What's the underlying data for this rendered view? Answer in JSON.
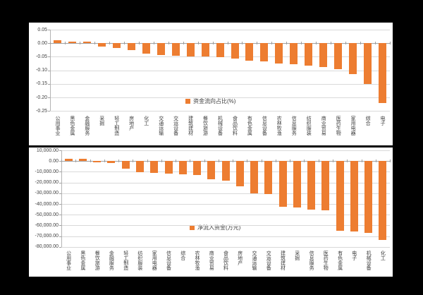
{
  "background_color": "#000000",
  "panel_color": "#FFFFFF",
  "bar_color": "#ED7D31",
  "gridline_color": "#D9D9D9",
  "text_color": "#3F3F3F",
  "chart_data": [
    {
      "type": "bar",
      "title": "",
      "legend": "资金流向占比(%)",
      "legend_position": "inside-bottom-center",
      "grid": true,
      "ylim": [
        -0.25,
        0.05
      ],
      "y_tick_labels": [
        "0.05",
        "0.00",
        "-0.05",
        "-0.10",
        "-0.15",
        "-0.20",
        "-0.25"
      ],
      "categories": [
        "公用事业",
        "黑色金属",
        "金融服务",
        "采掘",
        "轻工制造",
        "房地产",
        "化工",
        "交通运输",
        "交运设备",
        "建筑建材",
        "餐饮旅游",
        "机械设备",
        "食品饮料",
        "有色金属",
        "信息设备",
        "农林牧渔",
        "信息服务",
        "纺织服装",
        "商业贸易",
        "医药生物",
        "家用电器",
        "综合",
        "电子"
      ],
      "values": [
        0.011,
        0.007,
        0.005,
        -0.012,
        -0.019,
        -0.026,
        -0.038,
        -0.044,
        -0.046,
        -0.048,
        -0.05,
        -0.051,
        -0.056,
        -0.066,
        -0.067,
        -0.075,
        -0.077,
        -0.082,
        -0.089,
        -0.095,
        -0.115,
        -0.15,
        -0.222
      ]
    },
    {
      "type": "bar",
      "title": "",
      "legend": "净流入资金(万元)",
      "legend_position": "inside-bottom-center",
      "grid": true,
      "ylim": [
        -80000,
        10000
      ],
      "y_tick_labels": [
        "10,000.00",
        "0.00",
        "-10,000.00",
        "-20,000.00",
        "-30,000.00",
        "-40,000.00",
        "-50,000.00",
        "-60,000.00",
        "-70,000.00",
        "-80,000.00"
      ],
      "categories": [
        "公用事业",
        "黑色金属",
        "餐饮旅游",
        "金融服务",
        "轻工制造",
        "纺织服装",
        "家用电器",
        "信息设备",
        "综合",
        "农林牧渔",
        "商业贸易",
        "食品饮料",
        "房地产",
        "交通运输",
        "交运设备",
        "建筑建材",
        "采掘",
        "信息服务",
        "医药生物",
        "有色金属",
        "电子",
        "机械设备",
        "化工"
      ],
      "values": [
        2200,
        2400,
        -1100,
        -1800,
        -7000,
        -10500,
        -11300,
        -11500,
        -12400,
        -13000,
        -17300,
        -18400,
        -23300,
        -30200,
        -31000,
        -42400,
        -43300,
        -45000,
        -46000,
        -65000,
        -65500,
        -67300,
        -73600
      ]
    }
  ]
}
